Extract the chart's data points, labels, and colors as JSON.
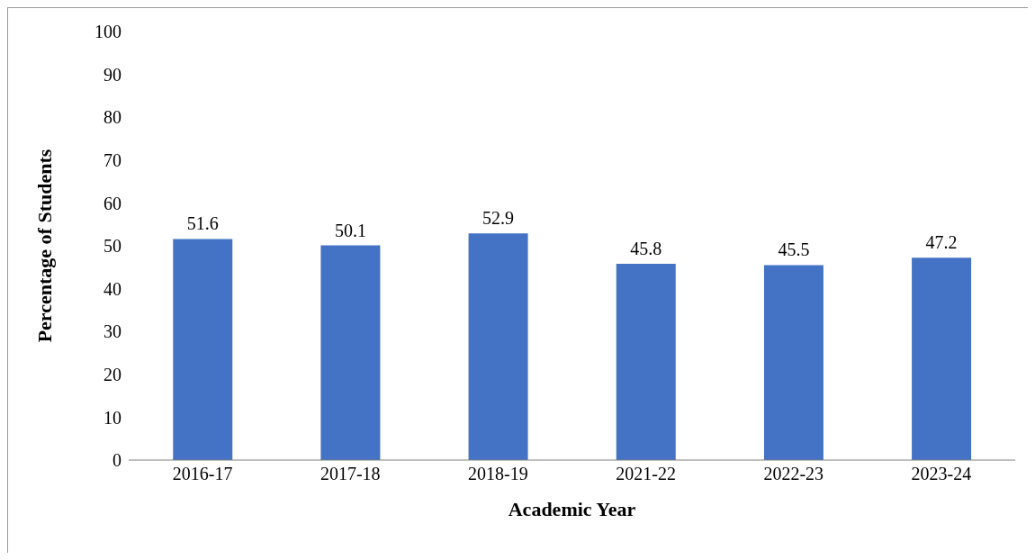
{
  "chart_data": {
    "type": "bar",
    "xlabel": "Academic Year",
    "ylabel": "Percentage of Students",
    "categories": [
      "2016-17",
      "2017-18",
      "2018-19",
      "2021-22",
      "2022-23",
      "2023-24"
    ],
    "values": [
      51.6,
      50.1,
      52.9,
      45.8,
      45.5,
      47.2
    ],
    "color": "#4472c4",
    "ylim": [
      0,
      100
    ],
    "yticks": [
      0,
      10,
      20,
      30,
      40,
      50,
      60,
      70,
      80,
      90,
      100
    ],
    "grid": false,
    "data_labels": true,
    "legend": false
  }
}
